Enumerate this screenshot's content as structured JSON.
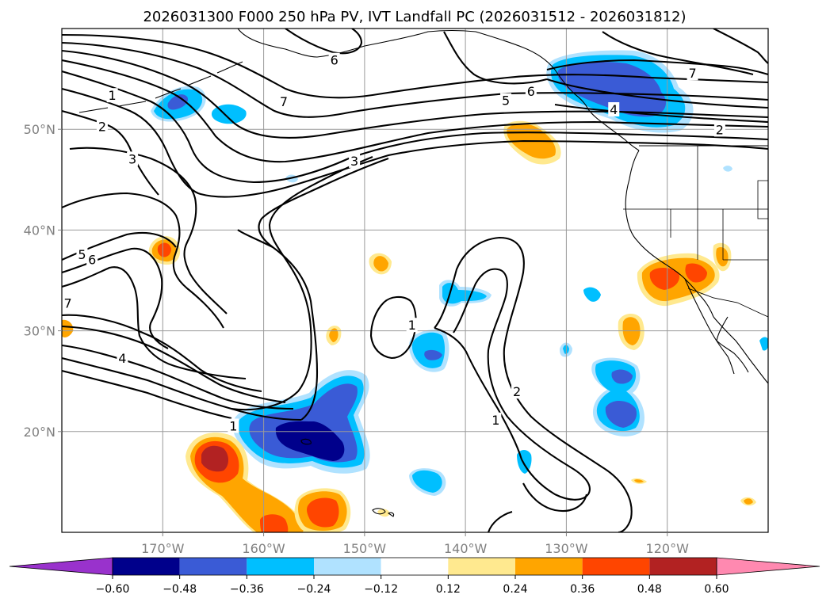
{
  "chart_data": {
    "type": "map-contour",
    "title": "2026031300 F000 250 hPa PV, IVT Landfall PC (2026031512 - 2026031812)",
    "lon_range": [
      -180,
      -110
    ],
    "lat_range": [
      10,
      60
    ],
    "x_ticks": [
      {
        "lon": -170,
        "label": "170°W"
      },
      {
        "lon": -160,
        "label": "160°W"
      },
      {
        "lon": -150,
        "label": "150°W"
      },
      {
        "lon": -140,
        "label": "140°W"
      },
      {
        "lon": -130,
        "label": "130°W"
      },
      {
        "lon": -120,
        "label": "120°W"
      }
    ],
    "y_ticks": [
      {
        "lat": 50,
        "label": "50°N"
      },
      {
        "lat": 40,
        "label": "40°N"
      },
      {
        "lat": 30,
        "label": "30°N"
      },
      {
        "lat": 20,
        "label": "20°N"
      }
    ],
    "colorbar": {
      "levels": [
        -0.6,
        -0.48,
        -0.36,
        -0.24,
        -0.12,
        0.12,
        0.24,
        0.36,
        0.48,
        0.6
      ],
      "tick_labels": [
        "−0.60",
        "−0.48",
        "−0.36",
        "−0.24",
        "−0.12",
        "0.12",
        "0.24",
        "0.36",
        "0.48",
        "0.60"
      ],
      "colors": [
        "#9932cc",
        "#00008b",
        "#3a5bd6",
        "#00bfff",
        "#b0e2ff",
        "#ffffff",
        "#ffe98f",
        "#ffa500",
        "#ff4500",
        "#b22222",
        "#ff89b0"
      ],
      "extend": "both"
    },
    "pv_contour_labels": [
      {
        "value": "1",
        "lon": -175,
        "lat": 53.3
      },
      {
        "value": "2",
        "lon": -176,
        "lat": 50.2
      },
      {
        "value": "3",
        "lon": -173,
        "lat": 47.0
      },
      {
        "value": "6",
        "lon": -153,
        "lat": 56.8
      },
      {
        "value": "7",
        "lon": -158,
        "lat": 52.7
      },
      {
        "value": "3",
        "lon": -151,
        "lat": 46.8
      },
      {
        "value": "5",
        "lon": -136,
        "lat": 52.8
      },
      {
        "value": "6",
        "lon": -133.5,
        "lat": 53.7
      },
      {
        "value": "7",
        "lon": -117.5,
        "lat": 55.5
      },
      {
        "value": "4",
        "lon": -125.3,
        "lat": 51.9
      },
      {
        "value": "2",
        "lon": -114.8,
        "lat": 49.9
      },
      {
        "value": "5",
        "lon": -178,
        "lat": 37.5
      },
      {
        "value": "6",
        "lon": -177,
        "lat": 37.0
      },
      {
        "value": "7",
        "lon": -179.4,
        "lat": 32.7
      },
      {
        "value": "4",
        "lon": -174,
        "lat": 27.2
      },
      {
        "value": "1",
        "lon": -145.3,
        "lat": 30.5
      },
      {
        "value": "2",
        "lon": -134.9,
        "lat": 23.9
      },
      {
        "value": "1",
        "lon": -137,
        "lat": 21.1
      },
      {
        "value": "1",
        "lon": -163,
        "lat": 20.5
      }
    ]
  }
}
